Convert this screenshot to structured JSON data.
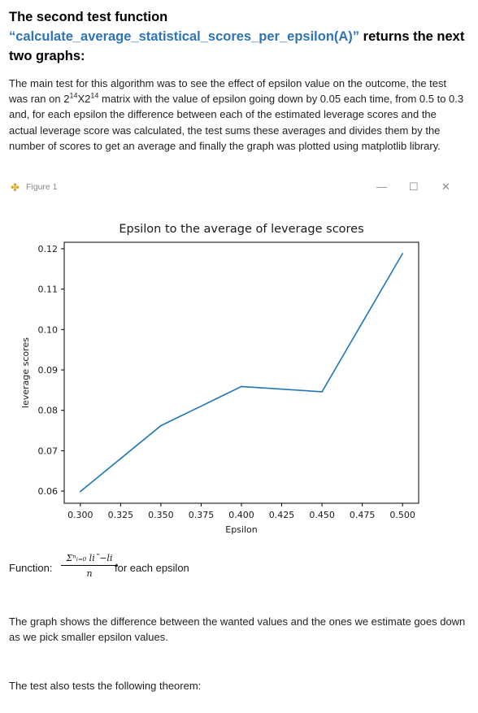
{
  "heading": {
    "line1": "The second test function",
    "function_name": "“calculate_average_statistical_scores_per_epsilon(A)”",
    "rest": " returns the next two graphs:"
  },
  "intro": {
    "part1": "The main test for this algorithm was to see the effect of epsilon value on the outcome, the test was ran on 2",
    "sup1": "14",
    "part2": "X2",
    "sup2": "14",
    "part3": " matrix with the value of epsilon going down by 0.05 each time, from 0.5 to 0.3 and, for each epsilon the difference between each of the estimated leverage scores and the actual leverage score was calculated, the test sums these averages and divides them by the number of scores to get an average and finally the graph was plotted using matplotlib library."
  },
  "figure_window": {
    "title": "Figure 1",
    "minimize": "—",
    "maximize": "☐",
    "close": "✕"
  },
  "chart_data": {
    "type": "line",
    "title": "Epsilon to the average of leverage scores",
    "xlabel": "Epsilon",
    "ylabel": "leverage scores",
    "x": [
      0.3,
      0.35,
      0.4,
      0.45,
      0.5
    ],
    "y": [
      0.0599,
      0.0762,
      0.0859,
      0.0846,
      0.1188
    ],
    "xticks": [
      "0.300",
      "0.325",
      "0.350",
      "0.375",
      "0.400",
      "0.425",
      "0.450",
      "0.475",
      "0.500"
    ],
    "yticks": [
      "0.06",
      "0.07",
      "0.08",
      "0.09",
      "0.10",
      "0.11",
      "0.12"
    ],
    "xlim": [
      0.29,
      0.51
    ],
    "ylim": [
      0.057,
      0.1216
    ],
    "grid": false,
    "line_color": "#1f77b4"
  },
  "function": {
    "label": "Function:",
    "numerator": "Σⁿᵢ₌₀ li˜−li",
    "denominator": "n",
    "suffix": "for each epsilon"
  },
  "conclusion": "The graph shows the difference between the wanted values and the ones we estimate goes down as we pick smaller epsilon values.",
  "theorem_intro": "The test also tests the following theorem:"
}
